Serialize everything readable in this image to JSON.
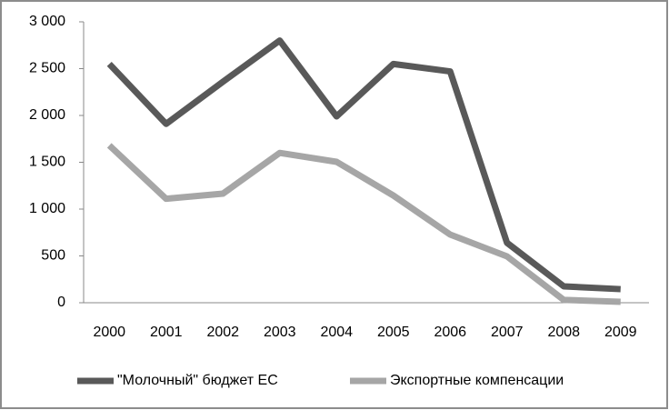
{
  "chart_data": {
    "type": "line",
    "categories": [
      "2000",
      "2001",
      "2002",
      "2003",
      "2004",
      "2005",
      "2006",
      "2007",
      "2008",
      "2009"
    ],
    "series": [
      {
        "name": "\"Молочный\" бюджет ЕС",
        "color": "#595959",
        "values": [
          2550,
          1910,
          2360,
          2800,
          1990,
          2550,
          2470,
          640,
          175,
          145
        ]
      },
      {
        "name": "Экспортные компенсации",
        "color": "#a6a6a6",
        "values": [
          1680,
          1110,
          1165,
          1600,
          1505,
          1145,
          728,
          495,
          30,
          10
        ]
      }
    ],
    "ylim": [
      0,
      3000
    ],
    "yticks": [
      0,
      500,
      {
        "value": 1000,
        "label": "1 000"
      },
      {
        "value": 1500,
        "label": "1 500"
      },
      {
        "value": 2000,
        "label": "2 000"
      },
      {
        "value": 2500,
        "label": "2 500"
      },
      {
        "value": 3000,
        "label": "3 000"
      }
    ],
    "grid": false,
    "legend": "bottom"
  }
}
